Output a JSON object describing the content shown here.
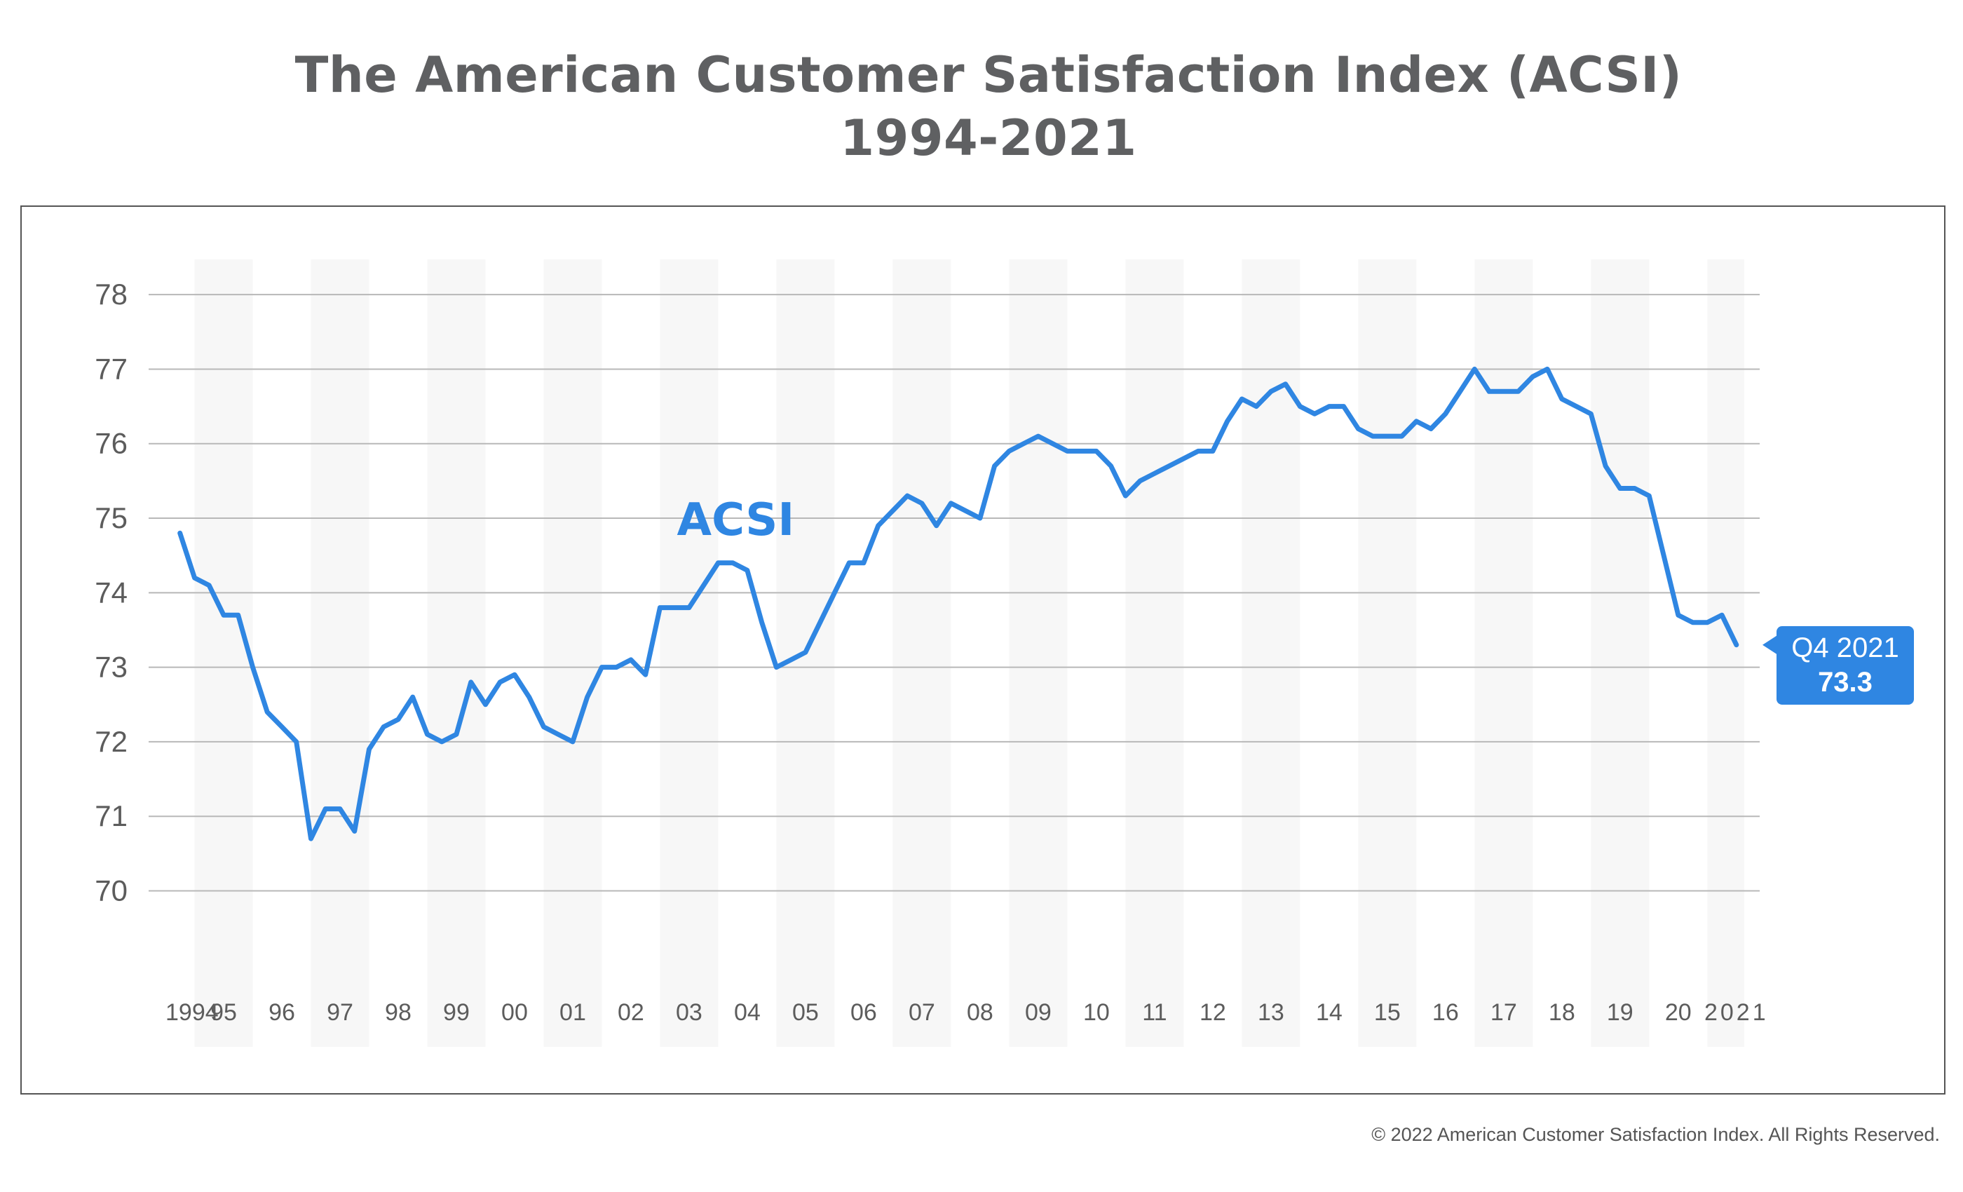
{
  "chart_data": {
    "type": "line",
    "title": "The American Customer Satisfaction Index (ACSI)",
    "subtitle": "1994-2021",
    "series": [
      {
        "name": "ACSI",
        "color": "#2f86e2",
        "values": [
          {
            "x": 1994.75,
            "y": 74.8
          },
          {
            "x": 1995.0,
            "y": 74.2
          },
          {
            "x": 1995.25,
            "y": 74.1
          },
          {
            "x": 1995.5,
            "y": 73.7
          },
          {
            "x": 1995.75,
            "y": 73.7
          },
          {
            "x": 1996.0,
            "y": 73.0
          },
          {
            "x": 1996.25,
            "y": 72.4
          },
          {
            "x": 1996.5,
            "y": 72.2
          },
          {
            "x": 1996.75,
            "y": 72.0
          },
          {
            "x": 1997.0,
            "y": 70.7
          },
          {
            "x": 1997.25,
            "y": 71.1
          },
          {
            "x": 1997.5,
            "y": 71.1
          },
          {
            "x": 1997.75,
            "y": 70.8
          },
          {
            "x": 1998.0,
            "y": 71.9
          },
          {
            "x": 1998.25,
            "y": 72.2
          },
          {
            "x": 1998.5,
            "y": 72.3
          },
          {
            "x": 1998.75,
            "y": 72.6
          },
          {
            "x": 1999.0,
            "y": 72.1
          },
          {
            "x": 1999.25,
            "y": 72.0
          },
          {
            "x": 1999.5,
            "y": 72.1
          },
          {
            "x": 1999.75,
            "y": 72.8
          },
          {
            "x": 2000.0,
            "y": 72.5
          },
          {
            "x": 2000.25,
            "y": 72.8
          },
          {
            "x": 2000.5,
            "y": 72.9
          },
          {
            "x": 2000.75,
            "y": 72.6
          },
          {
            "x": 2001.0,
            "y": 72.2
          },
          {
            "x": 2001.25,
            "y": 72.1
          },
          {
            "x": 2001.5,
            "y": 72.0
          },
          {
            "x": 2001.75,
            "y": 72.6
          },
          {
            "x": 2002.0,
            "y": 73.0
          },
          {
            "x": 2002.25,
            "y": 73.0
          },
          {
            "x": 2002.5,
            "y": 73.1
          },
          {
            "x": 2002.75,
            "y": 72.9
          },
          {
            "x": 2003.0,
            "y": 73.8
          },
          {
            "x": 2003.25,
            "y": 73.8
          },
          {
            "x": 2003.5,
            "y": 73.8
          },
          {
            "x": 2003.75,
            "y": 74.1
          },
          {
            "x": 2004.0,
            "y": 74.4
          },
          {
            "x": 2004.25,
            "y": 74.4
          },
          {
            "x": 2004.5,
            "y": 74.3
          },
          {
            "x": 2004.75,
            "y": 73.6
          },
          {
            "x": 2005.0,
            "y": 73.0
          },
          {
            "x": 2005.25,
            "y": 73.1
          },
          {
            "x": 2005.5,
            "y": 73.2
          },
          {
            "x": 2005.75,
            "y": 73.6
          },
          {
            "x": 2006.0,
            "y": 74.0
          },
          {
            "x": 2006.25,
            "y": 74.4
          },
          {
            "x": 2006.5,
            "y": 74.4
          },
          {
            "x": 2006.75,
            "y": 74.9
          },
          {
            "x": 2007.0,
            "y": 75.1
          },
          {
            "x": 2007.25,
            "y": 75.3
          },
          {
            "x": 2007.5,
            "y": 75.2
          },
          {
            "x": 2007.75,
            "y": 74.9
          },
          {
            "x": 2008.0,
            "y": 75.2
          },
          {
            "x": 2008.25,
            "y": 75.1
          },
          {
            "x": 2008.5,
            "y": 75.0
          },
          {
            "x": 2008.75,
            "y": 75.7
          },
          {
            "x": 2009.0,
            "y": 75.9
          },
          {
            "x": 2009.25,
            "y": 76.0
          },
          {
            "x": 2009.5,
            "y": 76.1
          },
          {
            "x": 2009.75,
            "y": 76.0
          },
          {
            "x": 2010.0,
            "y": 75.9
          },
          {
            "x": 2010.25,
            "y": 75.9
          },
          {
            "x": 2010.5,
            "y": 75.9
          },
          {
            "x": 2010.75,
            "y": 75.7
          },
          {
            "x": 2011.0,
            "y": 75.3
          },
          {
            "x": 2011.25,
            "y": 75.5
          },
          {
            "x": 2011.5,
            "y": 75.6
          },
          {
            "x": 2011.75,
            "y": 75.7
          },
          {
            "x": 2012.0,
            "y": 75.8
          },
          {
            "x": 2012.25,
            "y": 75.9
          },
          {
            "x": 2012.5,
            "y": 75.9
          },
          {
            "x": 2012.75,
            "y": 76.3
          },
          {
            "x": 2013.0,
            "y": 76.6
          },
          {
            "x": 2013.25,
            "y": 76.5
          },
          {
            "x": 2013.5,
            "y": 76.7
          },
          {
            "x": 2013.75,
            "y": 76.8
          },
          {
            "x": 2014.0,
            "y": 76.5
          },
          {
            "x": 2014.25,
            "y": 76.4
          },
          {
            "x": 2014.5,
            "y": 76.5
          },
          {
            "x": 2014.75,
            "y": 76.5
          },
          {
            "x": 2015.0,
            "y": 76.2
          },
          {
            "x": 2015.25,
            "y": 76.1
          },
          {
            "x": 2015.5,
            "y": 76.1
          },
          {
            "x": 2015.75,
            "y": 76.1
          },
          {
            "x": 2016.0,
            "y": 76.3
          },
          {
            "x": 2016.25,
            "y": 76.2
          },
          {
            "x": 2016.5,
            "y": 76.4
          },
          {
            "x": 2016.75,
            "y": 76.7
          },
          {
            "x": 2017.0,
            "y": 77.0
          },
          {
            "x": 2017.25,
            "y": 76.7
          },
          {
            "x": 2017.5,
            "y": 76.7
          },
          {
            "x": 2017.75,
            "y": 76.7
          },
          {
            "x": 2018.0,
            "y": 76.9
          },
          {
            "x": 2018.25,
            "y": 77.0
          },
          {
            "x": 2018.5,
            "y": 76.6
          },
          {
            "x": 2018.75,
            "y": 76.5
          },
          {
            "x": 2019.0,
            "y": 76.4
          },
          {
            "x": 2019.25,
            "y": 75.7
          },
          {
            "x": 2019.5,
            "y": 75.4
          },
          {
            "x": 2019.75,
            "y": 75.4
          },
          {
            "x": 2020.0,
            "y": 75.3
          },
          {
            "x": 2020.25,
            "y": 74.5
          },
          {
            "x": 2020.5,
            "y": 73.7
          },
          {
            "x": 2020.75,
            "y": 73.6
          },
          {
            "x": 2021.0,
            "y": 73.6
          },
          {
            "x": 2021.25,
            "y": 73.7
          },
          {
            "x": 2021.5,
            "y": 73.3
          }
        ]
      }
    ],
    "x_ticks": [
      {
        "x": 1994.5,
        "label": "1994"
      },
      {
        "x": 1995.5,
        "label": "95"
      },
      {
        "x": 1996.5,
        "label": "96"
      },
      {
        "x": 1997.5,
        "label": "97"
      },
      {
        "x": 1998.5,
        "label": "98"
      },
      {
        "x": 1999.5,
        "label": "99"
      },
      {
        "x": 2000.5,
        "label": "00"
      },
      {
        "x": 2001.5,
        "label": "01"
      },
      {
        "x": 2002.5,
        "label": "02"
      },
      {
        "x": 2003.5,
        "label": "03"
      },
      {
        "x": 2004.5,
        "label": "04"
      },
      {
        "x": 2005.5,
        "label": "05"
      },
      {
        "x": 2006.5,
        "label": "06"
      },
      {
        "x": 2007.5,
        "label": "07"
      },
      {
        "x": 2008.5,
        "label": "08"
      },
      {
        "x": 2009.5,
        "label": "09"
      },
      {
        "x": 2010.5,
        "label": "10"
      },
      {
        "x": 2011.5,
        "label": "11"
      },
      {
        "x": 2012.5,
        "label": "12"
      },
      {
        "x": 2013.5,
        "label": "13"
      },
      {
        "x": 2014.5,
        "label": "14"
      },
      {
        "x": 2015.5,
        "label": "15"
      },
      {
        "x": 2016.5,
        "label": "16"
      },
      {
        "x": 2017.5,
        "label": "17"
      },
      {
        "x": 2018.5,
        "label": "18"
      },
      {
        "x": 2019.5,
        "label": "19"
      },
      {
        "x": 2020.5,
        "label": "20"
      },
      {
        "x": 2021.5,
        "label": "2021"
      }
    ],
    "yticks": [
      70,
      71,
      72,
      73,
      74,
      75,
      76,
      77,
      78
    ],
    "xlim": [
      1994.5,
      2021.9
    ],
    "ylim": [
      69.6,
      78.5
    ],
    "grid": true,
    "alternating_year_bands": true,
    "annotations": [
      {
        "text": "ACSI",
        "x": 2004.3,
        "y": 75.0,
        "color": "#2f86e2"
      },
      {
        "text_line1": "Q4 2021",
        "text_line2": "73.3",
        "x": 2021.5,
        "y": 73.3,
        "color": "#2f86e2"
      }
    ],
    "xlabel": "",
    "ylabel": ""
  },
  "footer": {
    "copyright": "© 2022 American Customer Satisfaction Index. All Rights Reserved."
  }
}
